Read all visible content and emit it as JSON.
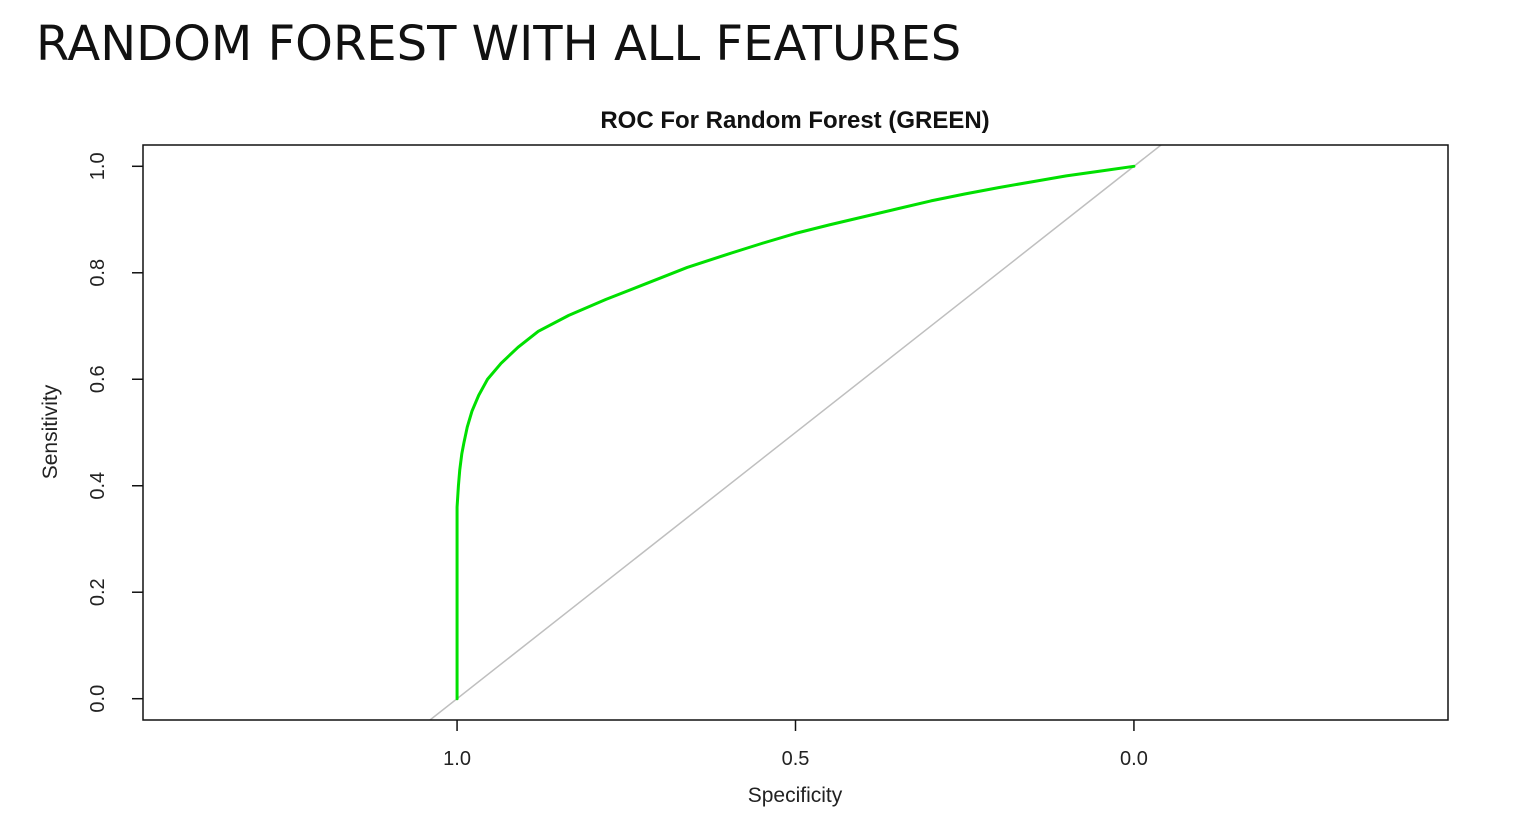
{
  "slide": {
    "title": "RANDOM FOREST WITH ALL FEATURES"
  },
  "chart_data": {
    "type": "line",
    "title": "ROC For Random Forest (GREEN)",
    "xlabel": "Specificity",
    "ylabel": "Sensitivity",
    "x_reversed": true,
    "xlim": [
      1.464,
      -0.464
    ],
    "ylim": [
      -0.04,
      1.04
    ],
    "x_ticks": [
      1.0,
      0.5,
      0.0
    ],
    "x_tick_labels": [
      "1.0",
      "0.5",
      "0.0"
    ],
    "y_ticks": [
      0.0,
      0.2,
      0.4,
      0.6,
      0.8,
      1.0
    ],
    "y_tick_labels": [
      "0.0",
      "0.2",
      "0.4",
      "0.6",
      "0.8",
      "1.0"
    ],
    "grid": false,
    "series": [
      {
        "color": "#00e000",
        "specificity": [
          1.0,
          1.0,
          1.0,
          1.0,
          0.998,
          0.996,
          0.993,
          0.99,
          0.985,
          0.978,
          0.968,
          0.955,
          0.935,
          0.91,
          0.88,
          0.835,
          0.78,
          0.72,
          0.66,
          0.6,
          0.55,
          0.5,
          0.45,
          0.4,
          0.35,
          0.3,
          0.25,
          0.2,
          0.15,
          0.1,
          0.05,
          0.0
        ],
        "sensitivity": [
          0.0,
          0.2,
          0.3,
          0.36,
          0.4,
          0.43,
          0.46,
          0.48,
          0.51,
          0.54,
          0.57,
          0.6,
          0.63,
          0.66,
          0.69,
          0.72,
          0.75,
          0.78,
          0.81,
          0.835,
          0.855,
          0.874,
          0.89,
          0.905,
          0.92,
          0.935,
          0.948,
          0.96,
          0.971,
          0.982,
          0.991,
          1.0
        ]
      },
      {
        "color": "#bfbfbf",
        "specificity": [
          1.04,
          -0.04
        ],
        "sensitivity": [
          -0.04,
          1.04
        ]
      }
    ]
  }
}
